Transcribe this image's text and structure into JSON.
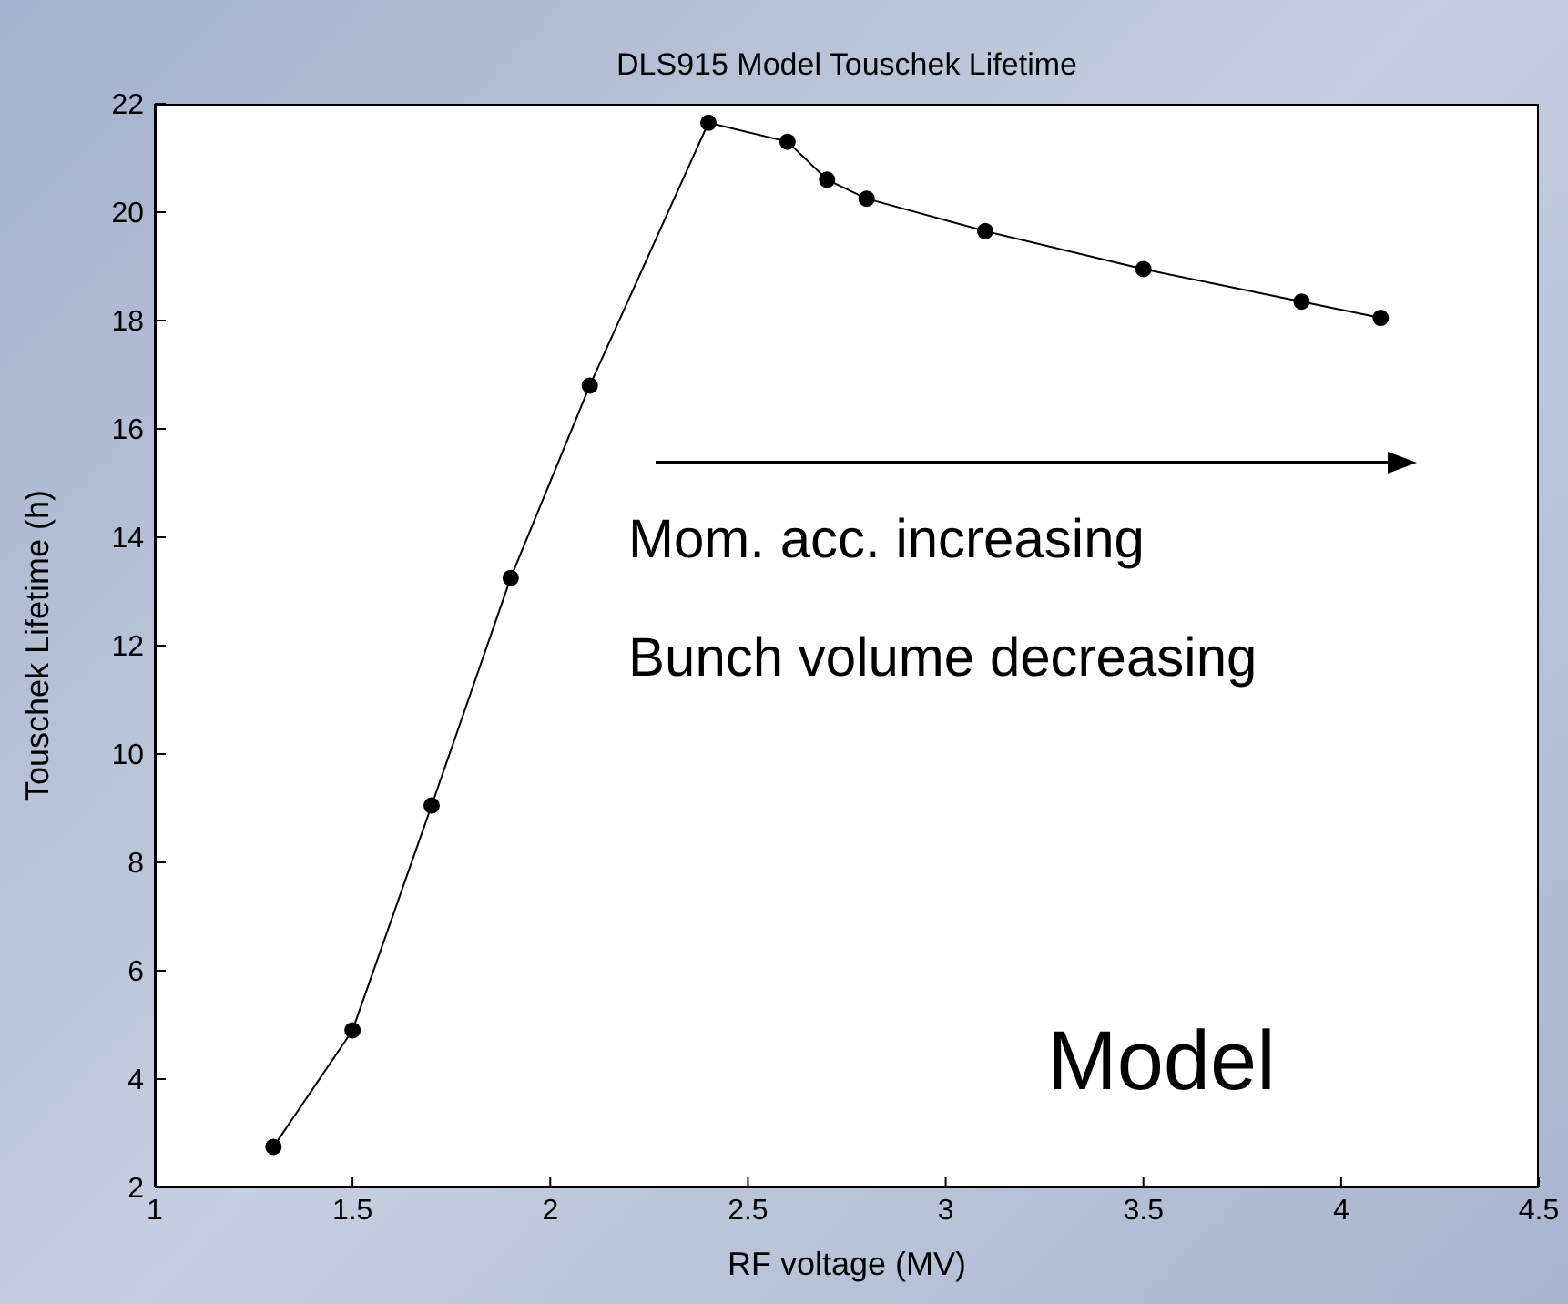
{
  "chart_data": {
    "type": "line",
    "title": "DLS915 Model Touschek Lifetime",
    "xlabel": "RF voltage (MV)",
    "ylabel": "Touschek Lifetime (h)",
    "x": [
      1.3,
      1.5,
      1.7,
      1.9,
      2.1,
      2.4,
      2.6,
      2.7,
      2.8,
      3.1,
      3.5,
      3.9,
      4.1
    ],
    "series": [
      {
        "color": "#000000",
        "values": [
          2.75,
          4.9,
          9.05,
          13.25,
          16.8,
          21.65,
          21.3,
          20.6,
          20.25,
          19.65,
          18.95,
          18.35,
          18.05
        ]
      }
    ],
    "xlim": [
      1,
      4.5
    ],
    "xticks": [
      1,
      1.5,
      2,
      2.5,
      3,
      3.5,
      4,
      4.5
    ],
    "ylim": [
      2,
      22
    ],
    "yticks": [
      2,
      4,
      6,
      8,
      10,
      12,
      14,
      16,
      18,
      20,
      22
    ],
    "marker": "circle",
    "line_style": "solid",
    "grid": false,
    "annotations": [
      "Mom. acc. increasing",
      "Bunch volume decreasing",
      "Model"
    ]
  }
}
